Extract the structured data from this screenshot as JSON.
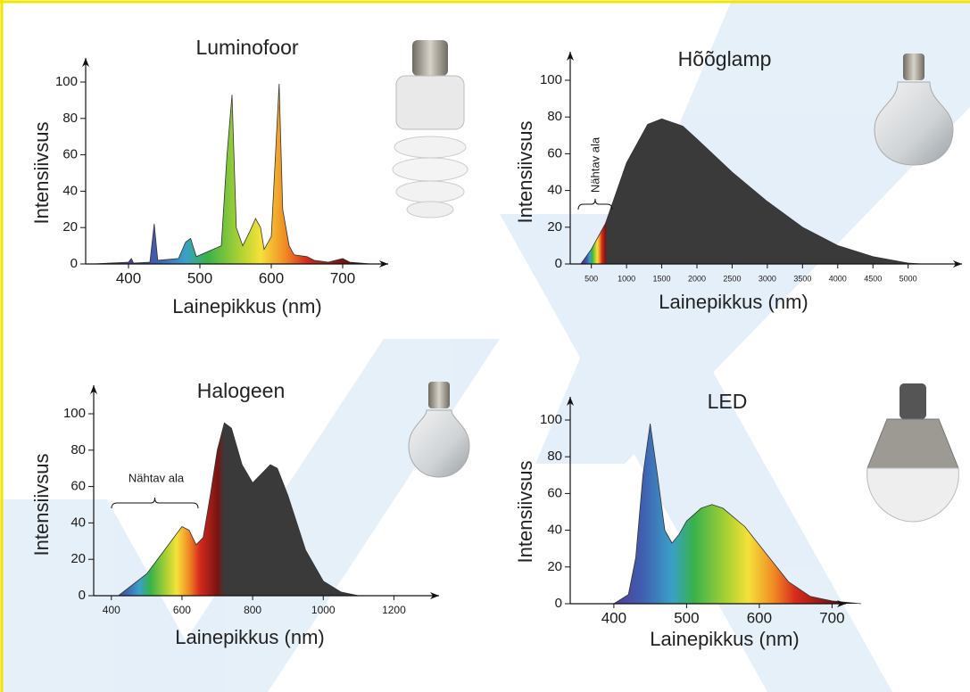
{
  "chart_data": [
    {
      "type": "area",
      "title": "Luminofoor",
      "x_label": "Lainepikkus (nm)",
      "y_label": "Intensiivsus",
      "x": [
        350,
        400,
        404,
        407,
        430,
        436,
        441,
        470,
        480,
        487,
        495,
        530,
        538,
        545,
        551,
        560,
        570,
        578,
        585,
        590,
        600,
        611,
        616,
        625,
        632,
        650,
        660,
        680,
        700,
        710,
        740
      ],
      "values": [
        0,
        1,
        3,
        0.5,
        1,
        22,
        2,
        3,
        12,
        14,
        4,
        10,
        60,
        93,
        20,
        10,
        18,
        25,
        20,
        8,
        15,
        99,
        30,
        10,
        5,
        4,
        2,
        1,
        3,
        1,
        0
      ],
      "xlim": [
        340,
        740
      ],
      "ylim": [
        0,
        100
      ],
      "xticks": [
        400,
        500,
        600,
        700
      ],
      "yticks": [
        0,
        20,
        40,
        60,
        80,
        100
      ]
    },
    {
      "type": "area",
      "title": "Hõõglamp",
      "x_label": "Lainepikkus (nm)",
      "y_label": "Intensiivsus",
      "x": [
        350,
        500,
        700,
        1000,
        1300,
        1500,
        1800,
        2000,
        2500,
        3000,
        3500,
        4000,
        4500,
        5000,
        5200
      ],
      "values": [
        0,
        8,
        22,
        55,
        76,
        79,
        75,
        68,
        50,
        34,
        20,
        10,
        4,
        0.5,
        0
      ],
      "xlim": [
        200,
        5600
      ],
      "ylim": [
        0,
        100
      ],
      "xticks": [
        500,
        1000,
        1500,
        2000,
        2500,
        3000,
        3500,
        4000,
        4500,
        5000
      ],
      "yticks": [
        0,
        20,
        40,
        60,
        80,
        100
      ],
      "annotation": "Nähtav ala"
    },
    {
      "type": "area",
      "title": "Halogeen",
      "x_label": "Lainepikkus (nm)",
      "y_label": "Intensiivsus",
      "x": [
        420,
        500,
        550,
        600,
        620,
        640,
        660,
        680,
        700,
        720,
        740,
        770,
        800,
        820,
        850,
        870,
        900,
        950,
        1000,
        1050,
        1100
      ],
      "values": [
        0,
        12,
        25,
        38,
        36,
        28,
        32,
        55,
        80,
        95,
        92,
        72,
        62,
        66,
        72,
        70,
        55,
        25,
        8,
        2,
        0
      ],
      "xlim": [
        350,
        1300
      ],
      "ylim": [
        0,
        100
      ],
      "xticks": [
        400,
        600,
        800,
        1000,
        1200
      ],
      "yticks": [
        0,
        20,
        40,
        60,
        80,
        100
      ],
      "annotation": "Nähtav ala"
    },
    {
      "type": "area",
      "title": "LED",
      "x_label": "Lainepikkus (nm)",
      "y_label": "Intensiivsus",
      "x": [
        400,
        420,
        430,
        440,
        450,
        460,
        470,
        480,
        490,
        500,
        520,
        535,
        550,
        580,
        600,
        640,
        670,
        700,
        740
      ],
      "values": [
        0,
        5,
        25,
        70,
        98,
        70,
        40,
        33,
        38,
        45,
        52,
        54,
        52,
        42,
        32,
        12,
        4,
        1.5,
        0
      ],
      "xlim": [
        340,
        740
      ],
      "ylim": [
        0,
        100
      ],
      "xticks": [
        400,
        500,
        600,
        700
      ],
      "yticks": [
        0,
        20,
        40,
        60,
        80,
        100
      ]
    }
  ]
}
